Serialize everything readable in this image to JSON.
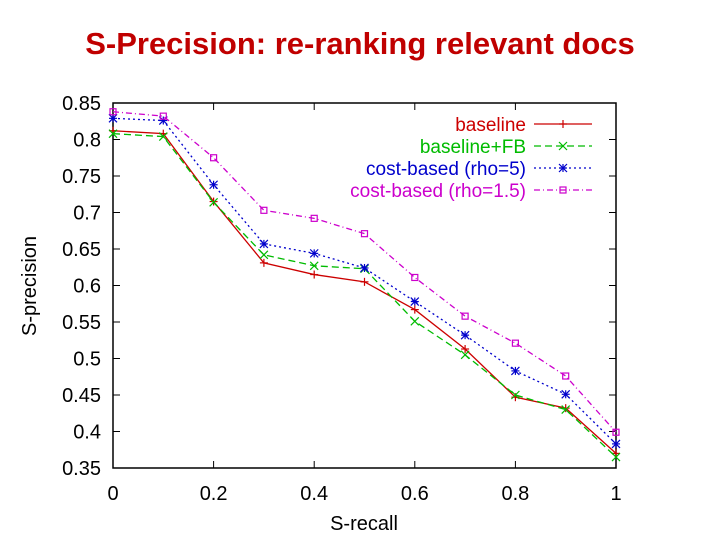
{
  "slide": {
    "title": "S-Precision: re-ranking relevant docs"
  },
  "chart_data": {
    "type": "line",
    "title": "S-Precision: re-ranking relevant docs",
    "xlabel": "S-recall",
    "ylabel": "S-precision",
    "xlim": [
      0,
      1
    ],
    "ylim": [
      0.35,
      0.85
    ],
    "xticks": [
      0,
      0.2,
      0.4,
      0.6,
      0.8,
      1
    ],
    "xtick_labels": [
      "0",
      "0.2",
      "0.4",
      "0.6",
      "0.8",
      "1"
    ],
    "yticks": [
      0.35,
      0.4,
      0.45,
      0.5,
      0.55,
      0.6,
      0.65,
      0.7,
      0.75,
      0.8,
      0.85
    ],
    "ytick_labels": [
      "0.35",
      "0.4",
      "0.45",
      "0.5",
      "0.55",
      "0.6",
      "0.65",
      "0.7",
      "0.75",
      "0.8",
      "0.85"
    ],
    "grid": false,
    "legend_position": "top-right",
    "x": [
      0,
      0.1,
      0.2,
      0.3,
      0.4,
      0.5,
      0.6,
      0.7,
      0.8,
      0.9,
      1.0
    ],
    "series": [
      {
        "name": "baseline",
        "color": "#cc0000",
        "dash": "solid",
        "marker": "plus",
        "values": [
          0.812,
          0.808,
          0.715,
          0.631,
          0.615,
          0.605,
          0.567,
          0.513,
          0.447,
          0.432,
          0.37
        ]
      },
      {
        "name": "baseline+FB",
        "color": "#00bb00",
        "dash": "dashed",
        "marker": "cross",
        "values": [
          0.808,
          0.804,
          0.714,
          0.642,
          0.627,
          0.623,
          0.551,
          0.505,
          0.45,
          0.43,
          0.365
        ]
      },
      {
        "name": "cost-based (rho=5)",
        "color": "#0000cc",
        "dash": "dotted",
        "marker": "star",
        "values": [
          0.829,
          0.826,
          0.738,
          0.657,
          0.644,
          0.624,
          0.578,
          0.532,
          0.483,
          0.451,
          0.383
        ]
      },
      {
        "name": "cost-based (rho=1.5)",
        "color": "#cc00cc",
        "dash": "dashdot",
        "marker": "square",
        "values": [
          0.838,
          0.832,
          0.775,
          0.703,
          0.692,
          0.671,
          0.611,
          0.558,
          0.521,
          0.476,
          0.399
        ]
      }
    ]
  }
}
